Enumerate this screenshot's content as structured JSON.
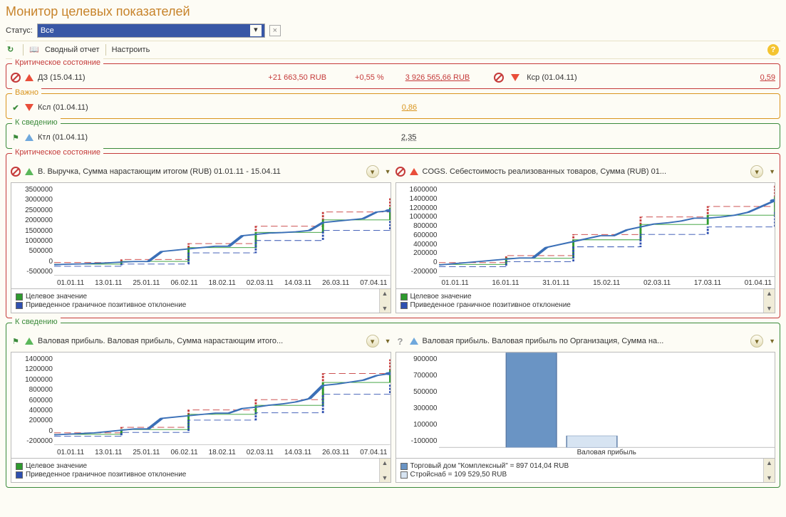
{
  "page_title": "Монитор целевых показателей",
  "status": {
    "label": "Статус:",
    "value": "Все"
  },
  "toolbar": {
    "report": "Сводный отчет",
    "settings": "Настроить"
  },
  "sections": {
    "critical": "Критическое состояние",
    "important": "Важно",
    "info": "К сведению"
  },
  "rows": {
    "dz": {
      "label": "ДЗ (15.04.11)",
      "delta_abs": "+21 663,50 RUB",
      "delta_pct": "+0,55 %",
      "value": "3 926 565,66 RUB"
    },
    "kcp": {
      "label": "Кср (01.04.11)",
      "value": "0,59"
    },
    "ksl": {
      "label": "Ксл (01.04.11)",
      "value": "0,86"
    },
    "ktl": {
      "label": "Ктл (01.04.11)",
      "value": "2,35"
    }
  },
  "charts": {
    "revenue": {
      "title": "В. Выручка, Сумма нарастающим итогом (RUB) 01.01.11 - 15.04.11",
      "type": "line",
      "y_ticks": [
        "3500000",
        "3000000",
        "2500000",
        "2000000",
        "1500000",
        "1000000",
        "500000",
        "0",
        "-500000"
      ],
      "x_ticks": [
        "01.01.11",
        "13.01.11",
        "25.01.11",
        "06.02.11",
        "18.02.11",
        "02.03.11",
        "14.03.11",
        "26.03.11",
        "07.04.11"
      ],
      "series_color": "#3a6fb7",
      "target_color": "#2e9a2e",
      "upper_color": "#c53a3a",
      "lower_color": "#2e4fb0",
      "background_color": "#ffffff",
      "grid_color": "#dddddd",
      "ylim": [
        -500000,
        3500000
      ],
      "values": [
        400000,
        420000,
        430000,
        450000,
        470000,
        500000,
        520000,
        520000,
        900000,
        950000,
        1000000,
        1050000,
        1100000,
        1100000,
        1500000,
        1550000,
        1600000,
        1620000,
        1650000,
        1700000,
        2000000,
        2050000,
        2100000,
        2150000,
        2400000,
        2450000
      ],
      "legend": {
        "target": "Целевое значение",
        "bound": "Приведенное граничное позитивное отклонение"
      }
    },
    "cogs": {
      "title": "COGS. Себестоимость реализованных товаров, Сумма (RUB) 01...",
      "type": "line",
      "y_ticks": [
        "1600000",
        "1400000",
        "1200000",
        "1000000",
        "800000",
        "600000",
        "400000",
        "200000",
        "0",
        "-200000"
      ],
      "x_ticks": [
        "01.01.11",
        "16.01.11",
        "31.01.11",
        "15.02.11",
        "02.03.11",
        "17.03.11",
        "01.04.11"
      ],
      "series_color": "#3a6fb7",
      "target_color": "#2e9a2e",
      "upper_color": "#c53a3a",
      "lower_color": "#2e4fb0",
      "background_color": "#ffffff",
      "grid_color": "#dddddd",
      "ylim": [
        -200000,
        1600000
      ],
      "values": [
        200000,
        220000,
        240000,
        260000,
        280000,
        300000,
        320000,
        320000,
        500000,
        550000,
        600000,
        650000,
        700000,
        700000,
        800000,
        850000,
        900000,
        920000,
        950000,
        1000000,
        1000000,
        1020000,
        1050000,
        1100000,
        1200000,
        1300000
      ],
      "legend": {
        "target": "Целевое значение",
        "bound": "Приведенное граничное позитивное отклонение"
      }
    },
    "gross1": {
      "title": "Валовая прибыль. Валовая прибыль, Сумма нарастающим итого...",
      "type": "line",
      "y_ticks": [
        "1400000",
        "1200000",
        "1000000",
        "800000",
        "600000",
        "400000",
        "200000",
        "0",
        "-200000"
      ],
      "x_ticks": [
        "01.01.11",
        "13.01.11",
        "25.01.11",
        "06.02.11",
        "18.02.11",
        "02.03.11",
        "14.03.11",
        "26.03.11",
        "07.04.11"
      ],
      "series_color": "#3a6fb7",
      "target_color": "#2e9a2e",
      "upper_color": "#c53a3a",
      "lower_color": "#2e4fb0",
      "background_color": "#ffffff",
      "grid_color": "#dddddd",
      "ylim": [
        -200000,
        1400000
      ],
      "values": [
        150000,
        160000,
        170000,
        180000,
        200000,
        220000,
        240000,
        240000,
        400000,
        420000,
        440000,
        460000,
        480000,
        480000,
        550000,
        570000,
        600000,
        620000,
        650000,
        700000,
        900000,
        920000,
        950000,
        980000,
        1050000,
        1080000
      ],
      "legend": {
        "target": "Целевое значение",
        "bound": "Приведенное граничное позитивное отклонение"
      }
    },
    "gross2": {
      "title": "Валовая прибыль. Валовая прибыль по Организация, Сумма на...",
      "type": "bar",
      "y_ticks": [
        "900000",
        "700000",
        "500000",
        "300000",
        "100000",
        "-100000"
      ],
      "x_label": "Валовая прибыль",
      "background_color": "#ffffff",
      "grid_color": "#dddddd",
      "ylim": [
        -100000,
        900000
      ],
      "bars": [
        {
          "label": "Торговый дом \"Комплексный\" = 897 014,04 RUB",
          "value": 897014.04,
          "color": "#6a94c4"
        },
        {
          "label": "Стройснаб = 109 529,50 RUB",
          "value": 109529.5,
          "color": "#d7e4f2"
        }
      ]
    }
  }
}
